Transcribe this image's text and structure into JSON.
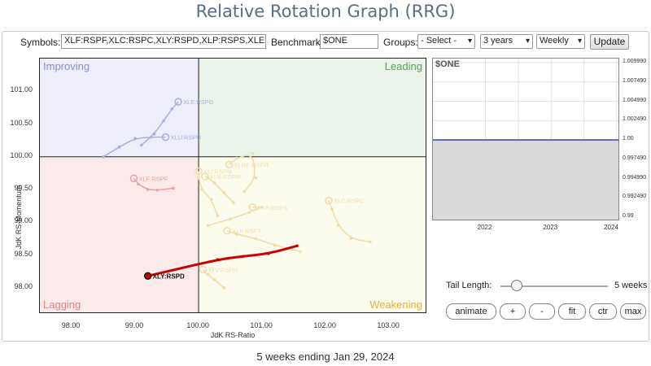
{
  "page": {
    "title": "Relative Rotation Graph (RRG)"
  },
  "controls": {
    "symbols_label": "Symbols:",
    "symbols_value": "XLF:RSPF,XLC:RSPC,XLY:RSPD,XLP:RSPS,XLE:",
    "benchmark_label": "Benchmark:",
    "benchmark_value": "$ONE",
    "groups_label": "Groups:",
    "groups_value": "- Select -",
    "period_value": "3 years",
    "frequency_value": "Weekly",
    "update_label": "Update"
  },
  "chart_data": [
    {
      "type": "scatter",
      "title": "",
      "xlabel": "JdK RS-Ratio",
      "ylabel": "JdK RS-Momentum",
      "xlim": [
        97.5,
        103.6
      ],
      "ylim": [
        97.6,
        101.5
      ],
      "x_ticks": [
        "98.00",
        "99.00",
        "100.00",
        "101.00",
        "102.00",
        "103.00"
      ],
      "y_ticks": [
        "98.00",
        "98.50",
        "99.00",
        "99.50",
        "100.00",
        "100.50",
        "101.00"
      ],
      "quadrants": [
        {
          "name": "Improving",
          "position": "top-left",
          "color": "#eeeefb",
          "label_color": "#8a8fd0"
        },
        {
          "name": "Leading",
          "position": "top-right",
          "color": "#eaf3ea",
          "label_color": "#5aa55a"
        },
        {
          "name": "Lagging",
          "position": "bottom-left",
          "color": "#fbeaea",
          "label_color": "#e08585"
        },
        {
          "name": "Weakening",
          "position": "bottom-right",
          "color": "#fbfbee",
          "label_color": "#e0b040"
        }
      ],
      "series": [
        {
          "name": "XLE:RSPG",
          "color": "#a8aee6",
          "highlighted": false,
          "points": [
            [
              99.1,
              100.18
            ],
            [
              99.3,
              100.35
            ],
            [
              99.45,
              100.55
            ],
            [
              99.58,
              100.73
            ],
            [
              99.68,
              100.84
            ]
          ]
        },
        {
          "name": "XLU:RSPU",
          "color": "#a8aee6",
          "highlighted": false,
          "points": [
            [
              98.5,
              100.0
            ],
            [
              98.75,
              100.15
            ],
            [
              99.0,
              100.28
            ],
            [
              99.25,
              100.3
            ],
            [
              99.48,
              100.3
            ]
          ]
        },
        {
          "name": "XLF:RSPF",
          "color": "#f0a0a0",
          "highlighted": false,
          "points": [
            [
              99.6,
              99.52
            ],
            [
              99.35,
              99.49
            ],
            [
              99.2,
              99.5
            ],
            [
              99.05,
              99.58
            ],
            [
              98.98,
              99.67
            ]
          ]
        },
        {
          "name": "XLRE:RSPR",
          "color": "#f3dca8",
          "highlighted": false,
          "points": [
            [
              100.72,
              99.47
            ],
            [
              100.9,
              99.68
            ],
            [
              100.85,
              100.05
            ],
            [
              100.6,
              99.98
            ],
            [
              100.48,
              99.88
            ]
          ]
        },
        {
          "name": "XLI:RSPN",
          "color": "#f3dca8",
          "highlighted": false,
          "points": [
            [
              100.3,
              99.1
            ],
            [
              100.2,
              99.35
            ],
            [
              100.05,
              99.5
            ],
            [
              100.0,
              99.68
            ],
            [
              100.0,
              99.78
            ]
          ]
        },
        {
          "name": "XLB:RSPM",
          "color": "#f3dca8",
          "highlighted": false,
          "points": [
            [
              100.55,
              99.3
            ],
            [
              100.4,
              99.45
            ],
            [
              100.25,
              99.6
            ],
            [
              100.15,
              99.68
            ],
            [
              100.1,
              99.7
            ]
          ]
        },
        {
          "name": "XLP:RSPS",
          "color": "#f3dca8",
          "highlighted": false,
          "points": [
            [
              100.15,
              98.95
            ],
            [
              100.5,
              99.05
            ],
            [
              100.8,
              99.15
            ],
            [
              101.0,
              99.23
            ],
            [
              100.85,
              99.23
            ]
          ]
        },
        {
          "name": "XLC:RSPC",
          "color": "#f3dca8",
          "highlighted": false,
          "points": [
            [
              102.7,
              98.7
            ],
            [
              102.4,
              98.75
            ],
            [
              102.2,
              98.95
            ],
            [
              102.1,
              99.2
            ],
            [
              102.05,
              99.33
            ]
          ]
        },
        {
          "name": "XLK:RSPT",
          "color": "#f3dca8",
          "highlighted": false,
          "points": [
            [
              101.6,
              98.55
            ],
            [
              101.2,
              98.65
            ],
            [
              100.9,
              98.75
            ],
            [
              100.6,
              98.82
            ],
            [
              100.45,
              98.87
            ]
          ]
        },
        {
          "name": "XLV:RSPH",
          "color": "#f3dca8",
          "highlighted": false,
          "points": [
            [
              100.4,
              98.0
            ],
            [
              100.25,
              98.12
            ],
            [
              100.15,
              98.2
            ],
            [
              100.1,
              98.24
            ],
            [
              100.07,
              98.28
            ]
          ]
        },
        {
          "name": "XLY:RSPD",
          "color": "#cc0000",
          "highlighted": true,
          "points": [
            [
              101.55,
              98.64
            ],
            [
              101.1,
              98.52
            ],
            [
              100.7,
              98.48
            ],
            [
              100.3,
              98.43
            ],
            [
              99.2,
              98.18
            ]
          ]
        }
      ]
    },
    {
      "type": "line",
      "title": "$ONE",
      "x_ticks": [
        "2022",
        "2023",
        "2024"
      ],
      "y_ticks": [
        "1.009990",
        "1.007490",
        "1.004990",
        "1.002490",
        "1.00",
        "0.997490",
        "0.994990",
        "0.992490",
        "0.99"
      ],
      "ylim": [
        0.99,
        1.00999
      ],
      "series": [
        {
          "values": [
            1.0,
            1.0,
            1.0,
            1.0
          ]
        }
      ]
    }
  ],
  "tail": {
    "label": "Tail Length:",
    "value_label": "5 weeks",
    "weeks": 5,
    "max_weeks": 52
  },
  "buttons": {
    "animate": "animate",
    "plus": "+",
    "minus": "-",
    "fit": "fit",
    "ctr": "ctr",
    "max": "max"
  },
  "footer": {
    "text": "5 weeks ending Jan 29, 2024"
  }
}
